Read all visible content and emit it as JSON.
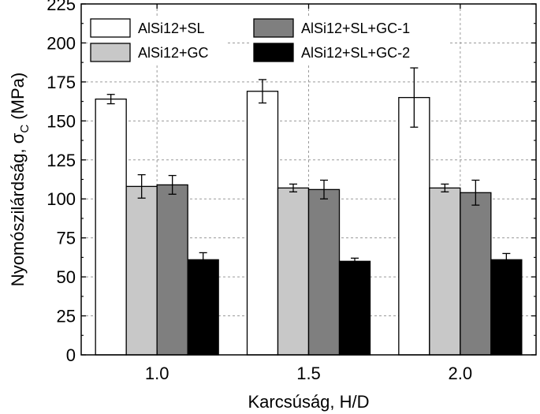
{
  "chart_data": {
    "type": "bar",
    "xlabel": "Karcsúság, H/D",
    "ylabel_main": "Nyomószilárdság, σ",
    "ylabel_sub": "C",
    "ylabel_unit": " (MPa)",
    "categories": [
      "1.0",
      "1.5",
      "2.0"
    ],
    "ylim": [
      0,
      225
    ],
    "yticks": [
      "0",
      "25",
      "50",
      "75",
      "100",
      "125",
      "150",
      "175",
      "200",
      "225"
    ],
    "grid": true,
    "legend_position": "top",
    "series": [
      {
        "name": "AlSi12+SL",
        "color": "#ffffff",
        "values": [
          164,
          169,
          165
        ],
        "errors": [
          3,
          7.5,
          19
        ]
      },
      {
        "name": "AlSi12+GC",
        "color": "#c8c8c8",
        "values": [
          108,
          107,
          107
        ],
        "errors": [
          7.5,
          2.5,
          2.5
        ]
      },
      {
        "name": "AlSi12+SL+GC-1",
        "color": "#7f7f7f",
        "values": [
          109,
          106,
          104
        ],
        "errors": [
          6,
          6,
          8
        ]
      },
      {
        "name": "AlSi12+SL+GC-2",
        "color": "#000000",
        "values": [
          61,
          60,
          61
        ],
        "errors": [
          4.5,
          2,
          4
        ]
      }
    ]
  }
}
